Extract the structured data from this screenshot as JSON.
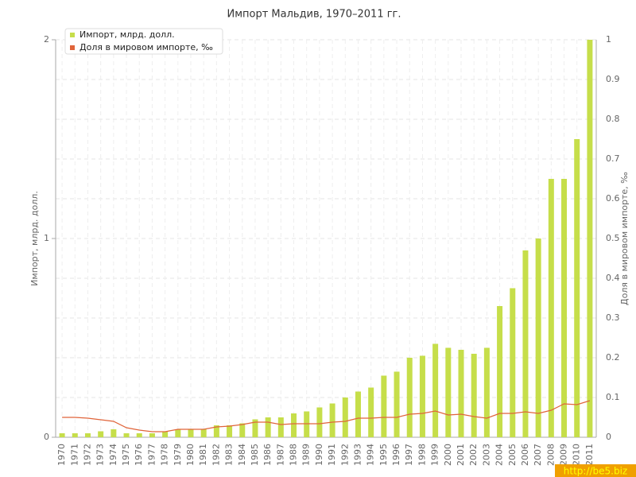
{
  "chart_data": {
    "type": "bar",
    "title": "Импорт Мальдив, 1970–2011 гг.",
    "y_label": "Импорт, млрд. долл.",
    "y2_label": "Доля в мировом импорте, ‰",
    "watermark": "http://be5.biz",
    "categories": [
      "1970",
      "1971",
      "1972",
      "1973",
      "1974",
      "1975",
      "1976",
      "1977",
      "1978",
      "1979",
      "1980",
      "1981",
      "1982",
      "1983",
      "1984",
      "1985",
      "1986",
      "1987",
      "1988",
      "1989",
      "1990",
      "1991",
      "1992",
      "1993",
      "1994",
      "1995",
      "1996",
      "1997",
      "1998",
      "1999",
      "2000",
      "2001",
      "2002",
      "2003",
      "2004",
      "2005",
      "2006",
      "2007",
      "2008",
      "2009",
      "2010",
      "2011"
    ],
    "series": [
      {
        "name": "Импорт, млрд. долл.",
        "type": "bar",
        "color": "#c6de4a",
        "values": [
          0.02,
          0.02,
          0.02,
          0.03,
          0.04,
          0.02,
          0.02,
          0.02,
          0.03,
          0.04,
          0.04,
          0.04,
          0.06,
          0.06,
          0.07,
          0.09,
          0.1,
          0.1,
          0.12,
          0.13,
          0.15,
          0.17,
          0.2,
          0.23,
          0.25,
          0.31,
          0.33,
          0.4,
          0.41,
          0.47,
          0.45,
          0.44,
          0.42,
          0.45,
          0.66,
          0.75,
          0.94,
          1.0,
          1.3,
          1.3,
          1.5,
          2.0
        ]
      },
      {
        "name": "Доля в мировом импорте, ‰",
        "type": "line",
        "axis": "y2",
        "color": "#e0643a",
        "values": [
          0.05,
          0.05,
          0.048,
          0.044,
          0.04,
          0.024,
          0.018,
          0.014,
          0.014,
          0.02,
          0.02,
          0.02,
          0.026,
          0.028,
          0.032,
          0.038,
          0.038,
          0.032,
          0.034,
          0.034,
          0.034,
          0.038,
          0.04,
          0.048,
          0.048,
          0.05,
          0.05,
          0.058,
          0.06,
          0.066,
          0.056,
          0.058,
          0.052,
          0.048,
          0.06,
          0.06,
          0.064,
          0.06,
          0.068,
          0.084,
          0.082,
          0.092
        ]
      }
    ],
    "ylim": [
      0,
      2
    ],
    "yticks": [
      0,
      1,
      2
    ],
    "y2lim": [
      0,
      1
    ],
    "y2ticks": [
      0,
      0.1,
      0.2,
      0.3,
      0.4,
      0.5,
      0.6,
      0.7,
      0.8,
      0.9,
      1
    ],
    "grid": true,
    "legend": "top-left"
  }
}
